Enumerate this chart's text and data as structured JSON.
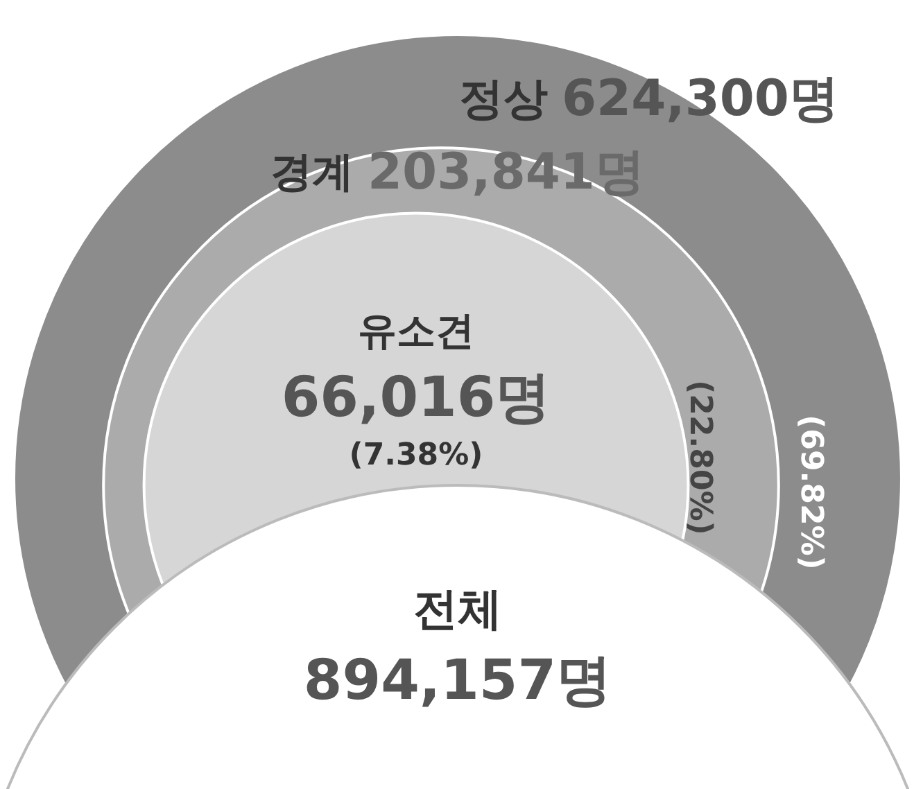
{
  "chart_data": {
    "type": "other",
    "categories": [
      "정상",
      "경계",
      "유소견"
    ],
    "values": [
      624300,
      203841,
      66016
    ],
    "value_labels": [
      "624,300명",
      "203,841명",
      "66,016명"
    ],
    "colors": [
      "#8c8c8c",
      "#ababab",
      "#d6d6d6"
    ],
    "annotations": [
      "(69.82%)",
      "(22.80%)",
      "(7.38%)",
      "전체",
      "894,157명"
    ]
  }
}
